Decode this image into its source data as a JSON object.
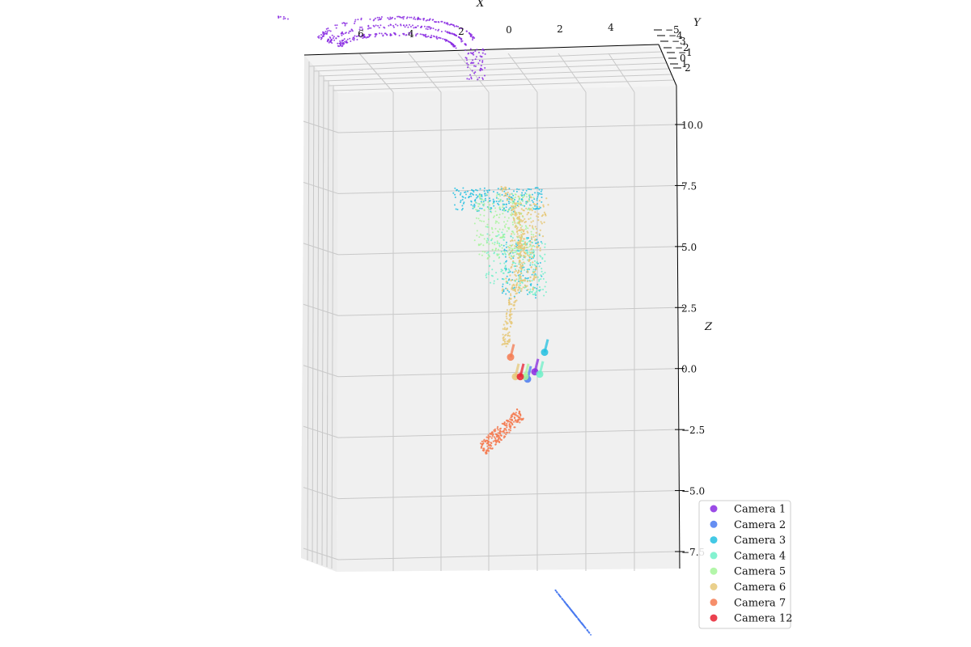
{
  "chart_data": {
    "type": "scatter",
    "projection": "3d",
    "title": "",
    "xlabel": "X",
    "ylabel": "Y",
    "zlabel": "Z",
    "x_ticks": [
      "6",
      "4",
      "2",
      "0",
      "2",
      "4"
    ],
    "y_ticks": [
      "−5",
      "−4",
      "−3",
      "−2",
      "−1",
      "0",
      "1",
      "2"
    ],
    "z_ticks": [
      "10.0",
      "7.5",
      "5.0",
      "2.5",
      "0.0",
      "−2.5",
      "−5.0",
      "−7.5"
    ],
    "z_range": [
      -8.2,
      11.5
    ],
    "x_range": [
      -7,
      7
    ],
    "grid": true,
    "legend_position": "lower-right",
    "series": [
      {
        "name": "Camera 1",
        "color": "#8a2be2",
        "camera": {
          "x": 1.1,
          "z": 0.0
        },
        "points_region": {
          "x": [
            -7.5,
            -1.5
          ],
          "z": [
            10.9,
            13.0
          ]
        }
      },
      {
        "name": "Camera 2",
        "color": "#4a7af0",
        "camera": {
          "x": 0.8,
          "z": -0.3
        },
        "points_region": {
          "x": [
            1.8,
            3.4
          ],
          "z": [
            -11.0,
            -9.2
          ]
        }
      },
      {
        "name": "Camera 3",
        "color": "#22c0e0",
        "camera": {
          "x": 1.5,
          "z": 0.8
        },
        "points_region": {
          "x": [
            -1.5,
            2.0
          ],
          "z": [
            3.0,
            7.8
          ]
        }
      },
      {
        "name": "Camera 4",
        "color": "#6ff0c8",
        "camera": {
          "x": 1.3,
          "z": -0.1
        },
        "points_region": {
          "x": [
            -0.8,
            1.8
          ],
          "z": [
            3.0,
            6.5
          ]
        }
      },
      {
        "name": "Camera 5",
        "color": "#a6f59a",
        "camera": {
          "x": 0.7,
          "z": -0.2
        },
        "points_region": {
          "x": [
            -1.3,
            1.5
          ],
          "z": [
            4.0,
            7.5
          ]
        }
      },
      {
        "name": "Camera 6",
        "color": "#e6c878",
        "camera": {
          "x": 0.3,
          "z": -0.2
        },
        "points_region": {
          "x": [
            -0.5,
            1.8
          ],
          "z": [
            1.0,
            7.5
          ]
        }
      },
      {
        "name": "Camera 7",
        "color": "#f47a50",
        "camera": {
          "x": 0.1,
          "z": 0.6
        },
        "points_region": {
          "x": [
            -1.0,
            0.5
          ],
          "z": [
            -3.3,
            -1.5
          ]
        }
      },
      {
        "name": "Camera 12",
        "color": "#e82030",
        "camera": {
          "x": 0.5,
          "z": -0.2
        },
        "points_region": {
          "x": [
            0.3,
            0.8
          ],
          "z": [
            -0.3,
            0.3
          ]
        }
      }
    ]
  }
}
